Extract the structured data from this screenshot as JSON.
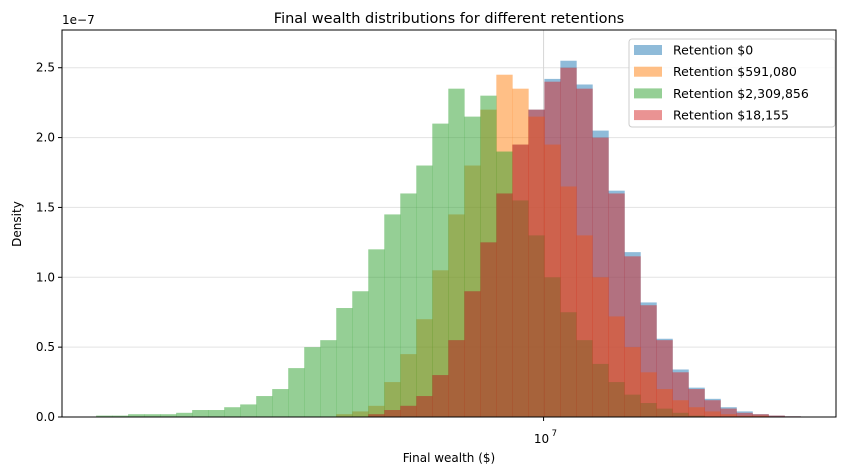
{
  "chart_data": {
    "type": "histogram",
    "title": "Final wealth distributions for different retentions",
    "xlabel": "Final wealth ($)",
    "ylabel": "Density",
    "y_scale_label": "1e−7",
    "x_scale": "log",
    "xlim": [
      3670000,
      18380000
    ],
    "ylim": [
      0,
      2.77e-07
    ],
    "x_ticks": [
      {
        "value": 10000000,
        "base": "10",
        "exp": "7"
      }
    ],
    "y_ticks": [
      "0.0",
      "0.5",
      "1.0",
      "1.5",
      "2.0",
      "2.5"
    ],
    "grid": true,
    "legend_position": "top-right",
    "alpha": 0.5,
    "bins": {
      "from": 3940000,
      "to": 17650000,
      "count": 45,
      "spacing": "log"
    },
    "series": [
      {
        "name": "Retention $0",
        "color": "#1f77b4",
        "density_e7": [
          0,
          0,
          0,
          0,
          0,
          0,
          0,
          0,
          0,
          0,
          0,
          0,
          0,
          0,
          0,
          0,
          0,
          0.02,
          0.05,
          0.08,
          0.15,
          0.3,
          0.55,
          0.9,
          1.25,
          1.6,
          1.95,
          2.2,
          2.42,
          2.55,
          2.38,
          2.05,
          1.62,
          1.18,
          0.82,
          0.56,
          0.34,
          0.21,
          0.13,
          0.07,
          0.04,
          0.02,
          0.01,
          0.005,
          0
        ]
      },
      {
        "name": "Retention $591,080",
        "color": "#ff7f0e",
        "density_e7": [
          0,
          0,
          0,
          0,
          0,
          0,
          0,
          0,
          0,
          0,
          0,
          0,
          0,
          0,
          0,
          0.02,
          0.04,
          0.08,
          0.25,
          0.45,
          0.7,
          1.05,
          1.45,
          1.8,
          2.2,
          2.45,
          2.35,
          2.15,
          1.95,
          1.65,
          1.3,
          1.0,
          0.72,
          0.5,
          0.32,
          0.2,
          0.12,
          0.07,
          0.04,
          0.02,
          0.01,
          0.01,
          0,
          0,
          0
        ]
      },
      {
        "name": "Retention $2,309,856",
        "color": "#2ca02c",
        "density_e7": [
          0.01,
          0.01,
          0.02,
          0.02,
          0.02,
          0.03,
          0.05,
          0.05,
          0.07,
          0.09,
          0.15,
          0.2,
          0.35,
          0.5,
          0.55,
          0.78,
          0.9,
          1.2,
          1.45,
          1.6,
          1.8,
          2.1,
          2.35,
          2.15,
          2.3,
          1.9,
          1.55,
          1.3,
          1.0,
          0.75,
          0.55,
          0.38,
          0.25,
          0.16,
          0.1,
          0.06,
          0.03,
          0.01,
          0,
          0,
          0,
          0,
          0,
          0,
          0
        ]
      },
      {
        "name": "Retention $18,155",
        "color": "#d62728",
        "density_e7": [
          0,
          0,
          0,
          0,
          0,
          0,
          0,
          0,
          0,
          0,
          0,
          0,
          0,
          0,
          0,
          0,
          0,
          0.02,
          0.05,
          0.08,
          0.15,
          0.3,
          0.55,
          0.9,
          1.25,
          1.6,
          1.95,
          2.2,
          2.4,
          2.5,
          2.35,
          2.0,
          1.6,
          1.15,
          0.8,
          0.55,
          0.32,
          0.2,
          0.12,
          0.06,
          0.03,
          0.02,
          0.01,
          0.005,
          0
        ]
      }
    ]
  }
}
